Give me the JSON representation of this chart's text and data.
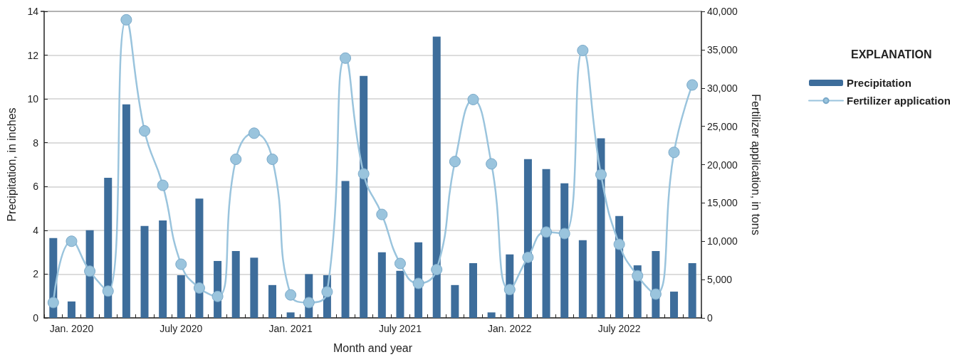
{
  "chart_data": {
    "type": "bar",
    "xlabel": "Month and year",
    "ylabel": "Precipitation, in inches",
    "y2label": "Fertilizer application, in tons",
    "legend_title": "EXPLANATION",
    "categories": [
      null,
      "Jan. 2020",
      null,
      null,
      null,
      null,
      null,
      "July 2020",
      null,
      null,
      null,
      null,
      null,
      "Jan. 2021",
      null,
      null,
      null,
      null,
      null,
      "July 2021",
      null,
      null,
      null,
      null,
      null,
      "Jan. 2022",
      null,
      null,
      null,
      null,
      null,
      "July 2022",
      null,
      null,
      null,
      null
    ],
    "series": [
      {
        "name": "Precipitation",
        "color": "#3d6d9b",
        "values": [
          3.65,
          0.75,
          4.0,
          6.4,
          9.75,
          4.2,
          4.45,
          1.95,
          5.45,
          2.6,
          3.05,
          2.75,
          1.5,
          0.25,
          2.0,
          1.95,
          6.25,
          11.05,
          3.0,
          2.15,
          3.45,
          12.85,
          1.5,
          2.5,
          0.25,
          2.9,
          7.25,
          6.8,
          6.15,
          3.55,
          8.2,
          4.65,
          2.4,
          3.05,
          1.2,
          2.5
        ]
      },
      {
        "name": "Fertilizer application",
        "type": "line",
        "axis": "y2",
        "color": "#9ac4dd",
        "marker": "circle",
        "line_style": "solid",
        "values": [
          2000,
          10000,
          6100,
          3500,
          38900,
          24400,
          17300,
          7000,
          3900,
          2800,
          20700,
          24100,
          20700,
          3000,
          2000,
          3400,
          33900,
          18800,
          13500,
          7100,
          4500,
          6300,
          20400,
          28500,
          20100,
          3700,
          7900,
          11200,
          11000,
          34900,
          18700,
          9600,
          5500,
          3100,
          21600,
          30400
        ]
      }
    ],
    "ylim": [
      0,
      14
    ],
    "yticks": [
      0,
      2,
      4,
      6,
      8,
      10,
      12,
      14
    ],
    "y2lim": [
      0,
      40000
    ],
    "y2ticks": [
      0,
      {
        "value": 5000,
        "label": "5,000"
      },
      {
        "value": 10000,
        "label": "10,000"
      },
      {
        "value": 15000,
        "label": "15,000"
      },
      {
        "value": 20000,
        "label": "20,000"
      },
      {
        "value": 25000,
        "label": "25,000"
      },
      {
        "value": 30000,
        "label": "30,000"
      },
      {
        "value": 35000,
        "label": "35,000"
      },
      {
        "value": 40000,
        "label": "40,000"
      }
    ],
    "grid": "y",
    "legend": "top right"
  }
}
